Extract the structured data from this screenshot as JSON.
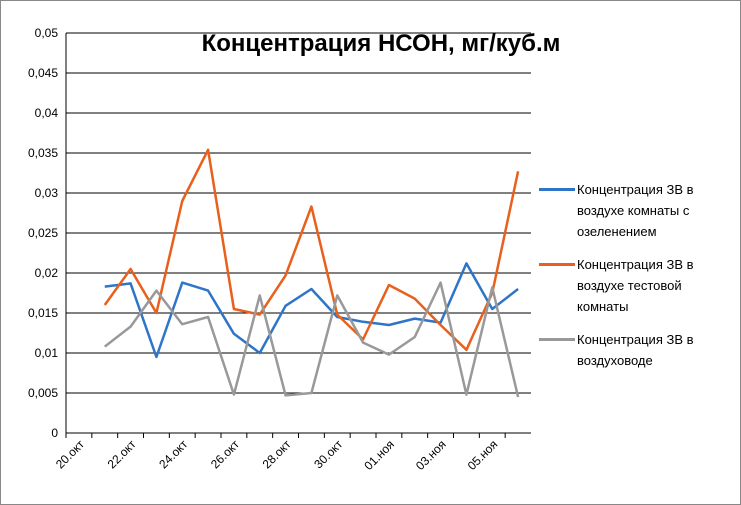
{
  "chart_data": {
    "type": "line",
    "title": "Концентрация НСОН, мг/куб.м",
    "categories": [
      "20.окт",
      null,
      "22.окт",
      null,
      "24.окт",
      null,
      "26.окт",
      null,
      "28.окт",
      null,
      "30.окт",
      null,
      "01.ноя",
      null,
      "03.ноя",
      null,
      "05.ноя",
      null
    ],
    "series": [
      {
        "name": "Концентрация ЗВ в воздухе комнаты с озеленением",
        "color": "#2e75c8",
        "values": [
          null,
          0.0183,
          0.0187,
          0.0095,
          0.0188,
          0.0178,
          0.0124,
          0.01,
          0.0159,
          0.018,
          0.0145,
          0.0139,
          0.0135,
          0.0143,
          0.0138,
          0.0212,
          0.0155,
          0.018
        ]
      },
      {
        "name": "Концентрация ЗВ в воздухе тестовой комнаты",
        "color": "#e8601c",
        "values": [
          null,
          0.016,
          0.0205,
          0.015,
          0.029,
          0.0354,
          0.0155,
          0.0148,
          0.0197,
          0.0283,
          0.0148,
          0.0117,
          0.0185,
          0.0168,
          0.0135,
          0.0104,
          0.0175,
          0.0327
        ]
      },
      {
        "name": "Концентрация ЗВ в воздуховоде",
        "color": "#999999",
        "values": [
          null,
          0.0108,
          0.0133,
          0.0178,
          0.0136,
          0.0145,
          0.0048,
          0.0172,
          0.0047,
          0.005,
          0.0172,
          0.0113,
          0.0098,
          0.012,
          0.0188,
          0.0048,
          0.0182,
          0.0045
        ]
      }
    ],
    "ylim": [
      0,
      0.05
    ],
    "yticks": [
      0,
      {
        "value": 0.005,
        "label": "0,005"
      },
      {
        "value": 0.01,
        "label": "0,01"
      },
      {
        "value": 0.015,
        "label": "0,015"
      },
      {
        "value": 0.02,
        "label": "0,02"
      },
      {
        "value": 0.025,
        "label": "0,025"
      },
      {
        "value": 0.03,
        "label": "0,03"
      },
      {
        "value": 0.035,
        "label": "0,035"
      },
      {
        "value": 0.04,
        "label": "0,04"
      },
      {
        "value": 0.045,
        "label": "0,045"
      },
      {
        "value": 0.05,
        "label": "0,05"
      }
    ],
    "grid": true
  }
}
